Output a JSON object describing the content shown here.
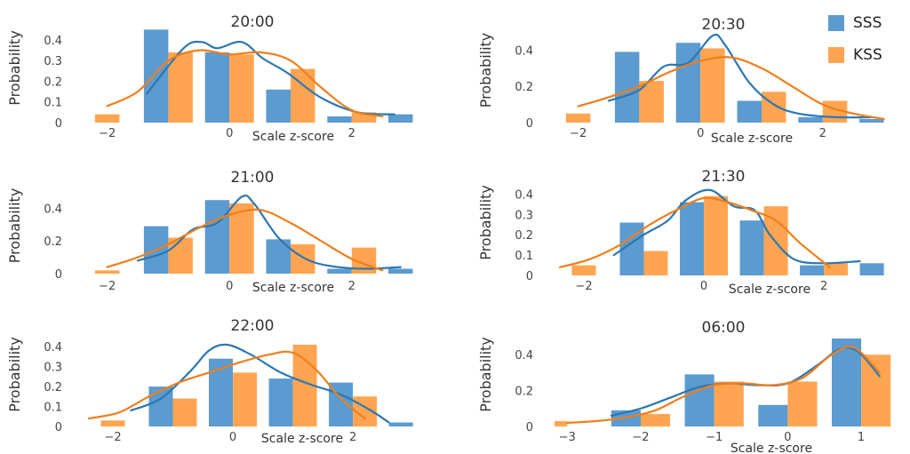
{
  "colors": {
    "SSS": "#5b9bd0",
    "KSS": "#ffa551",
    "SSS_line": "#2c77b2",
    "KSS_line": "#f07e1a"
  },
  "legend": [
    {
      "name": "SSS",
      "color": "#5b9bd0"
    },
    {
      "name": "KSS",
      "color": "#ffa551"
    }
  ],
  "chart_data": [
    {
      "type": "bar",
      "title": "20:00",
      "xlabel": "Scale z-score",
      "ylabel": "Probability",
      "xlim": [
        -2.3,
        3.05
      ],
      "ylim": [
        0,
        0.46
      ],
      "xticks": [
        {
          "v": -2,
          "label": "−2"
        },
        {
          "v": 0,
          "label": "0"
        },
        {
          "v": 2,
          "label": "2"
        }
      ],
      "yticks": [
        0,
        0.1,
        0.2,
        0.3,
        0.4
      ],
      "bar_width": 0.4,
      "series": [
        {
          "name": "SSS",
          "centers": [
            -1.2,
            -0.2,
            0.8,
            1.8,
            2.8
          ],
          "values": [
            0.45,
            0.34,
            0.16,
            0.03,
            0.04
          ],
          "curve_x": [
            -1.35,
            -0.75,
            -0.45,
            -0.2,
            0.2,
            0.55,
            0.95,
            1.5,
            2.1,
            2.7
          ],
          "curve_y": [
            0.14,
            0.36,
            0.39,
            0.36,
            0.39,
            0.31,
            0.24,
            0.12,
            0.05,
            0.04
          ]
        },
        {
          "name": "KSS",
          "centers": [
            -2.0,
            -0.8,
            0.2,
            1.2,
            2.2
          ],
          "values": [
            0.04,
            0.34,
            0.33,
            0.26,
            0.05
          ],
          "curve_x": [
            -2.0,
            -1.5,
            -1.0,
            -0.5,
            0.0,
            0.5,
            1.0,
            1.5,
            2.0,
            2.5
          ],
          "curve_y": [
            0.08,
            0.15,
            0.3,
            0.35,
            0.33,
            0.34,
            0.3,
            0.17,
            0.06,
            0.03
          ]
        }
      ]
    },
    {
      "type": "bar",
      "title": "20:30",
      "xlabel": "Scale z-score",
      "ylabel": "Probability",
      "xlim": [
        -2.3,
        3.05
      ],
      "ylim": [
        0,
        0.5
      ],
      "xticks": [
        {
          "v": -2,
          "label": "−2"
        },
        {
          "v": 0,
          "label": "0"
        },
        {
          "v": 2,
          "label": "2"
        }
      ],
      "yticks": [
        0,
        0.2,
        0.4
      ],
      "bar_width": 0.4,
      "series": [
        {
          "name": "SSS",
          "centers": [
            -1.2,
            -0.2,
            0.8,
            1.8,
            2.8
          ],
          "values": [
            0.39,
            0.44,
            0.12,
            0.03,
            0.02
          ],
          "curve_x": [
            -1.5,
            -1.0,
            -0.6,
            -0.2,
            0.2,
            0.4,
            0.8,
            1.2,
            1.6,
            2.2,
            2.8
          ],
          "curve_y": [
            0.12,
            0.18,
            0.31,
            0.33,
            0.48,
            0.43,
            0.22,
            0.1,
            0.05,
            0.03,
            0.03
          ]
        },
        {
          "name": "KSS",
          "centers": [
            -2.0,
            -0.8,
            0.2,
            1.2,
            2.2
          ],
          "values": [
            0.05,
            0.23,
            0.41,
            0.17,
            0.12
          ],
          "curve_x": [
            -2.0,
            -1.5,
            -1.0,
            -0.5,
            0.0,
            0.5,
            1.0,
            1.5,
            2.0,
            2.5,
            3.0
          ],
          "curve_y": [
            0.09,
            0.14,
            0.2,
            0.28,
            0.34,
            0.36,
            0.3,
            0.2,
            0.1,
            0.05,
            0.02
          ]
        }
      ]
    },
    {
      "type": "bar",
      "title": "21:00",
      "xlabel": "Scale z-score",
      "ylabel": "Probability",
      "xlim": [
        -2.3,
        3.05
      ],
      "ylim": [
        0,
        0.5
      ],
      "xticks": [
        {
          "v": -2,
          "label": "−2"
        },
        {
          "v": 0,
          "label": "0"
        },
        {
          "v": 2,
          "label": "2"
        }
      ],
      "yticks": [
        0,
        0.2,
        0.4
      ],
      "bar_width": 0.4,
      "series": [
        {
          "name": "SSS",
          "centers": [
            -1.2,
            -0.2,
            0.8,
            1.8,
            2.8
          ],
          "values": [
            0.29,
            0.45,
            0.21,
            0.03,
            0.03
          ],
          "curve_x": [
            -1.5,
            -1.0,
            -0.6,
            -0.2,
            0.2,
            0.4,
            0.8,
            1.2,
            1.6,
            2.2,
            2.8
          ],
          "curve_y": [
            0.08,
            0.14,
            0.27,
            0.31,
            0.47,
            0.43,
            0.22,
            0.1,
            0.05,
            0.03,
            0.04
          ]
        },
        {
          "name": "KSS",
          "centers": [
            -2.0,
            -0.8,
            0.2,
            1.2,
            2.2
          ],
          "values": [
            0.02,
            0.22,
            0.43,
            0.18,
            0.16
          ],
          "curve_x": [
            -2.0,
            -1.5,
            -1.0,
            -0.5,
            0.0,
            0.5,
            1.0,
            1.5,
            2.0,
            2.5
          ],
          "curve_y": [
            0.04,
            0.1,
            0.18,
            0.28,
            0.36,
            0.39,
            0.31,
            0.2,
            0.09,
            0.02
          ]
        }
      ]
    },
    {
      "type": "bar",
      "title": "21:30",
      "xlabel": "Scale z-score",
      "ylabel": "Probability",
      "xlim": [
        -2.4,
        3.05
      ],
      "ylim": [
        0,
        0.45
      ],
      "xticks": [
        {
          "v": -2,
          "label": "−2"
        },
        {
          "v": 0,
          "label": "0"
        },
        {
          "v": 2,
          "label": "2"
        }
      ],
      "yticks": [
        0,
        0.1,
        0.2,
        0.3,
        0.4
      ],
      "bar_width": 0.4,
      "series": [
        {
          "name": "SSS",
          "centers": [
            -1.2,
            -0.2,
            0.8,
            1.8,
            2.8
          ],
          "values": [
            0.26,
            0.36,
            0.27,
            0.05,
            0.06
          ],
          "curve_x": [
            -1.5,
            -1.0,
            -0.6,
            -0.3,
            0.1,
            0.5,
            0.85,
            1.1,
            1.5,
            2.0,
            2.6
          ],
          "curve_y": [
            0.1,
            0.2,
            0.27,
            0.37,
            0.42,
            0.34,
            0.32,
            0.2,
            0.08,
            0.06,
            0.07
          ]
        },
        {
          "name": "KSS",
          "centers": [
            -2.0,
            -0.8,
            0.2,
            1.2,
            2.2
          ],
          "values": [
            0.05,
            0.12,
            0.39,
            0.34,
            0.06
          ],
          "curve_x": [
            -2.4,
            -1.9,
            -1.4,
            -0.9,
            -0.4,
            0.0,
            0.4,
            0.8,
            1.2,
            1.6,
            2.1
          ],
          "curve_y": [
            0.04,
            0.08,
            0.15,
            0.25,
            0.33,
            0.38,
            0.36,
            0.32,
            0.27,
            0.16,
            0.04
          ]
        }
      ]
    },
    {
      "type": "bar",
      "title": "22:00",
      "xlabel": "Scale z-score",
      "ylabel": "Probability",
      "xlim": [
        -2.4,
        3.05
      ],
      "ylim": [
        0,
        0.45
      ],
      "xticks": [
        {
          "v": -2,
          "label": "−2"
        },
        {
          "v": 0,
          "label": "0"
        },
        {
          "v": 2,
          "label": "2"
        }
      ],
      "yticks": [
        0,
        0.1,
        0.2,
        0.3,
        0.4
      ],
      "bar_width": 0.4,
      "series": [
        {
          "name": "SSS",
          "centers": [
            -1.2,
            -0.2,
            0.8,
            1.8,
            2.8
          ],
          "values": [
            0.2,
            0.34,
            0.24,
            0.22,
            0.02
          ],
          "curve_x": [
            -1.7,
            -1.2,
            -0.7,
            -0.4,
            -0.1,
            0.3,
            0.8,
            1.3,
            1.8,
            2.3,
            2.6
          ],
          "curve_y": [
            0.08,
            0.14,
            0.28,
            0.38,
            0.41,
            0.36,
            0.27,
            0.21,
            0.16,
            0.08,
            0.02
          ]
        },
        {
          "name": "KSS",
          "centers": [
            -2.0,
            -0.8,
            0.2,
            1.2,
            2.2
          ],
          "values": [
            0.03,
            0.14,
            0.27,
            0.41,
            0.15
          ],
          "curve_x": [
            -2.4,
            -1.9,
            -1.4,
            -0.9,
            -0.4,
            0.1,
            0.6,
            1.0,
            1.4,
            1.8,
            2.2
          ],
          "curve_y": [
            0.04,
            0.07,
            0.15,
            0.22,
            0.27,
            0.32,
            0.36,
            0.37,
            0.28,
            0.14,
            0.04
          ]
        }
      ]
    },
    {
      "type": "bar",
      "title": "06:00",
      "xlabel": "Scale z-score",
      "ylabel": "Probability",
      "xlim": [
        -3.1,
        1.35
      ],
      "ylim": [
        0,
        0.5
      ],
      "xticks": [
        {
          "v": -3,
          "label": "−3"
        },
        {
          "v": -2,
          "label": "−2"
        },
        {
          "v": -1,
          "label": "−1"
        },
        {
          "v": 0,
          "label": "0"
        },
        {
          "v": 1,
          "label": "1"
        }
      ],
      "yticks": [
        0,
        0.2,
        0.4
      ],
      "bar_width": 0.4,
      "series": [
        {
          "name": "SSS",
          "centers": [
            -2.2,
            -1.2,
            -0.2,
            0.8
          ],
          "values": [
            0.09,
            0.29,
            0.12,
            0.49
          ],
          "curve_x": [
            -2.4,
            -2.0,
            -1.6,
            -1.2,
            -0.8,
            -0.4,
            0.0,
            0.4,
            0.7,
            0.95,
            1.25
          ],
          "curve_y": [
            0.06,
            0.1,
            0.16,
            0.22,
            0.24,
            0.23,
            0.24,
            0.34,
            0.43,
            0.42,
            0.28
          ]
        },
        {
          "name": "KSS",
          "centers": [
            -3.2,
            -1.8,
            -0.8,
            0.2,
            1.2
          ],
          "values": [
            0.03,
            0.07,
            0.25,
            0.25,
            0.4
          ],
          "curve_x": [
            -3.0,
            -2.6,
            -2.2,
            -1.8,
            -1.4,
            -1.0,
            -0.6,
            -0.2,
            0.2,
            0.6,
            0.9,
            1.25
          ],
          "curve_y": [
            0.02,
            0.03,
            0.05,
            0.09,
            0.17,
            0.23,
            0.24,
            0.23,
            0.27,
            0.4,
            0.44,
            0.3
          ]
        }
      ]
    }
  ]
}
